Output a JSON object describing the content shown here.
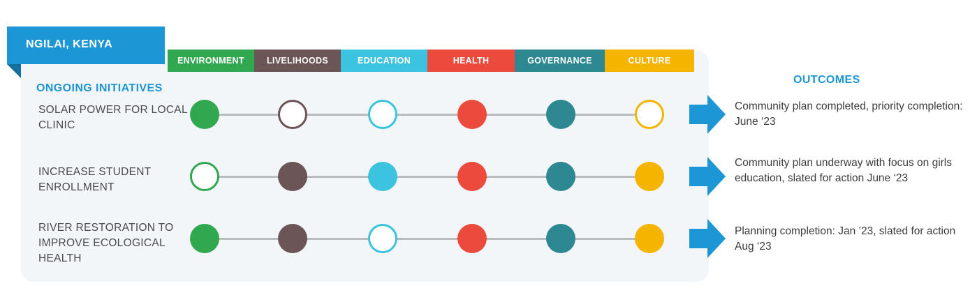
{
  "location": "NGILAI, KENYA",
  "section_title": "ONGOING INITIATIVES",
  "outcomes_title": "OUTCOMES",
  "categories": [
    {
      "label": "ENVIRONMENT",
      "color": "#31a84f"
    },
    {
      "label": "LIVELIHOODS",
      "color": "#6b5557"
    },
    {
      "label": "EDUCATION",
      "color": "#3cc3e0"
    },
    {
      "label": "HEALTH",
      "color": "#ed4a3e"
    },
    {
      "label": "GOVERNANCE",
      "color": "#2d8892"
    },
    {
      "label": "CULTURE",
      "color": "#f4b400"
    }
  ],
  "initiatives": [
    {
      "name": "SOLAR POWER FOR LOCAL CLINIC",
      "status": [
        "filled",
        "outline",
        "outline",
        "filled",
        "filled",
        "outline"
      ],
      "outcome": "Community plan completed, priority completion: June ‘23"
    },
    {
      "name": "INCREASE STUDENT ENROLLMENT",
      "status": [
        "outline",
        "filled",
        "filled",
        "filled",
        "filled",
        "filled"
      ],
      "outcome": "Community plan underway with focus on girls education, slated for action June ‘23"
    },
    {
      "name": "RIVER RESTORATION TO IMPROVE ECOLOGICAL HEALTH",
      "status": [
        "filled",
        "filled",
        "outline",
        "filled",
        "filled",
        "filled"
      ],
      "outcome": "Planning completion: Jan ’23, slated for action Aug ‘23"
    }
  ],
  "colors": {
    "accent": "#1d96d6",
    "arrow": "#1d96d6",
    "track": "#b9bcbe",
    "panel": "#f3f6f9"
  }
}
